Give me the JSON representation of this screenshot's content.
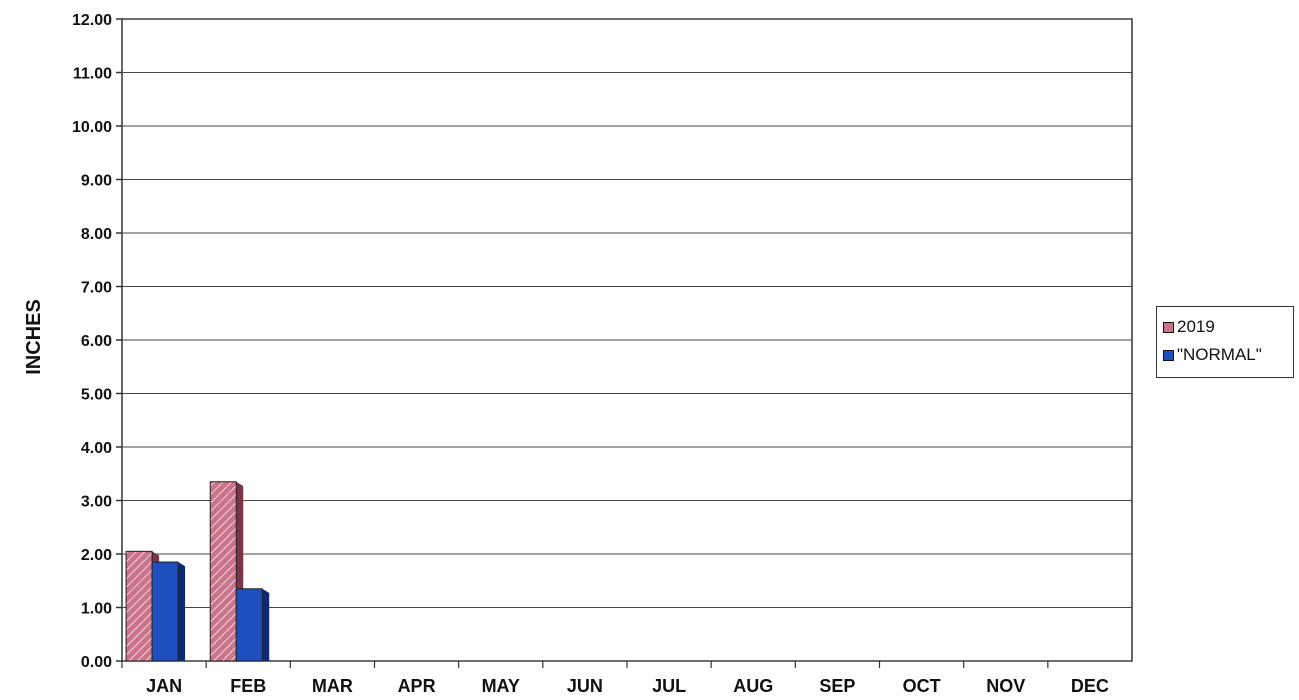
{
  "chart_data": {
    "type": "bar",
    "title": "",
    "xlabel": "",
    "ylabel": "INCHES",
    "ylim": [
      0,
      12
    ],
    "yticks": [
      "0.00",
      "1.00",
      "2.00",
      "3.00",
      "4.00",
      "5.00",
      "6.00",
      "7.00",
      "8.00",
      "9.00",
      "10.00",
      "11.00",
      "12.00"
    ],
    "categories": [
      "JAN",
      "FEB",
      "MAR",
      "APR",
      "MAY",
      "JUN",
      "JUL",
      "AUG",
      "SEP",
      "OCT",
      "NOV",
      "DEC"
    ],
    "grid": true,
    "legend_position": "right",
    "series": [
      {
        "name": "2019",
        "color": "#c9748a",
        "values": [
          2.05,
          3.35,
          0,
          0,
          0,
          0,
          0,
          0,
          0,
          0,
          0,
          0
        ]
      },
      {
        "name": "\"NORMAL\"",
        "color": "#1f4fbf",
        "values": [
          1.85,
          1.35,
          0,
          0,
          0,
          0,
          0,
          0,
          0,
          0,
          0,
          0
        ]
      }
    ]
  }
}
